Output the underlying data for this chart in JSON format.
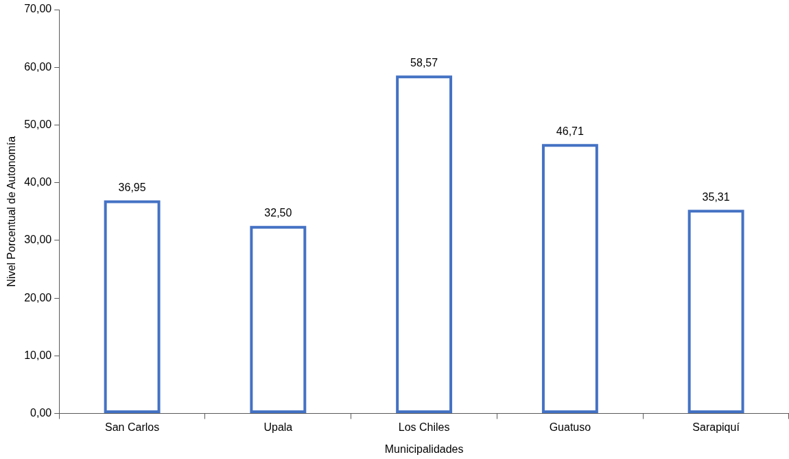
{
  "chart_data": {
    "type": "bar",
    "xlabel": "Municipalidades",
    "ylabel": "Nivel Porcentual de Autonomía",
    "categories": [
      "San Carlos",
      "Upala",
      "Los Chiles",
      "Guatuso",
      "Sarapiquí"
    ],
    "values": [
      36.95,
      32.5,
      58.57,
      46.71,
      35.31
    ],
    "value_labels": [
      "36,95",
      "32,50",
      "58,57",
      "46,71",
      "35,31"
    ],
    "color": "#4472c4",
    "ylim": [
      0,
      70
    ],
    "yticks": [
      {
        "value": 0,
        "label": "0,00"
      },
      {
        "value": 10,
        "label": "10,00"
      },
      {
        "value": 20,
        "label": "20,00"
      },
      {
        "value": 30,
        "label": "30,00"
      },
      {
        "value": 40,
        "label": "40,00"
      },
      {
        "value": 50,
        "label": "50,00"
      },
      {
        "value": 60,
        "label": "60,00"
      },
      {
        "value": 70,
        "label": "70,00"
      }
    ],
    "grid": false,
    "legend": false
  }
}
